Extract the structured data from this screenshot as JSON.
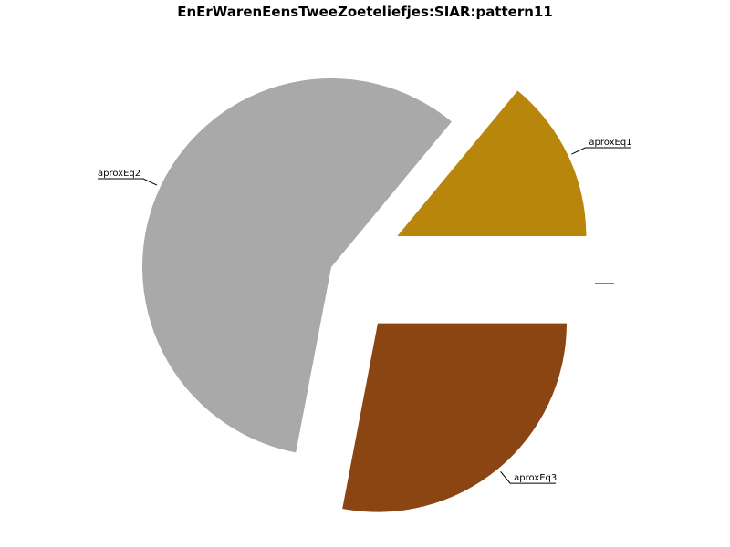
{
  "chart_data": {
    "type": "pie",
    "title": "EnErWarenEensTweeZoeteliefjes:SIAR:pattern11",
    "slices": [
      {
        "label": "aproxEq1",
        "value": 14,
        "color": "#B8860B"
      },
      {
        "label": "aproxEq2",
        "value": 58,
        "color": "#A9A9A9"
      },
      {
        "label": "aproxEq3",
        "value": 28,
        "color": "#8B4513"
      }
    ],
    "legend": "none"
  }
}
